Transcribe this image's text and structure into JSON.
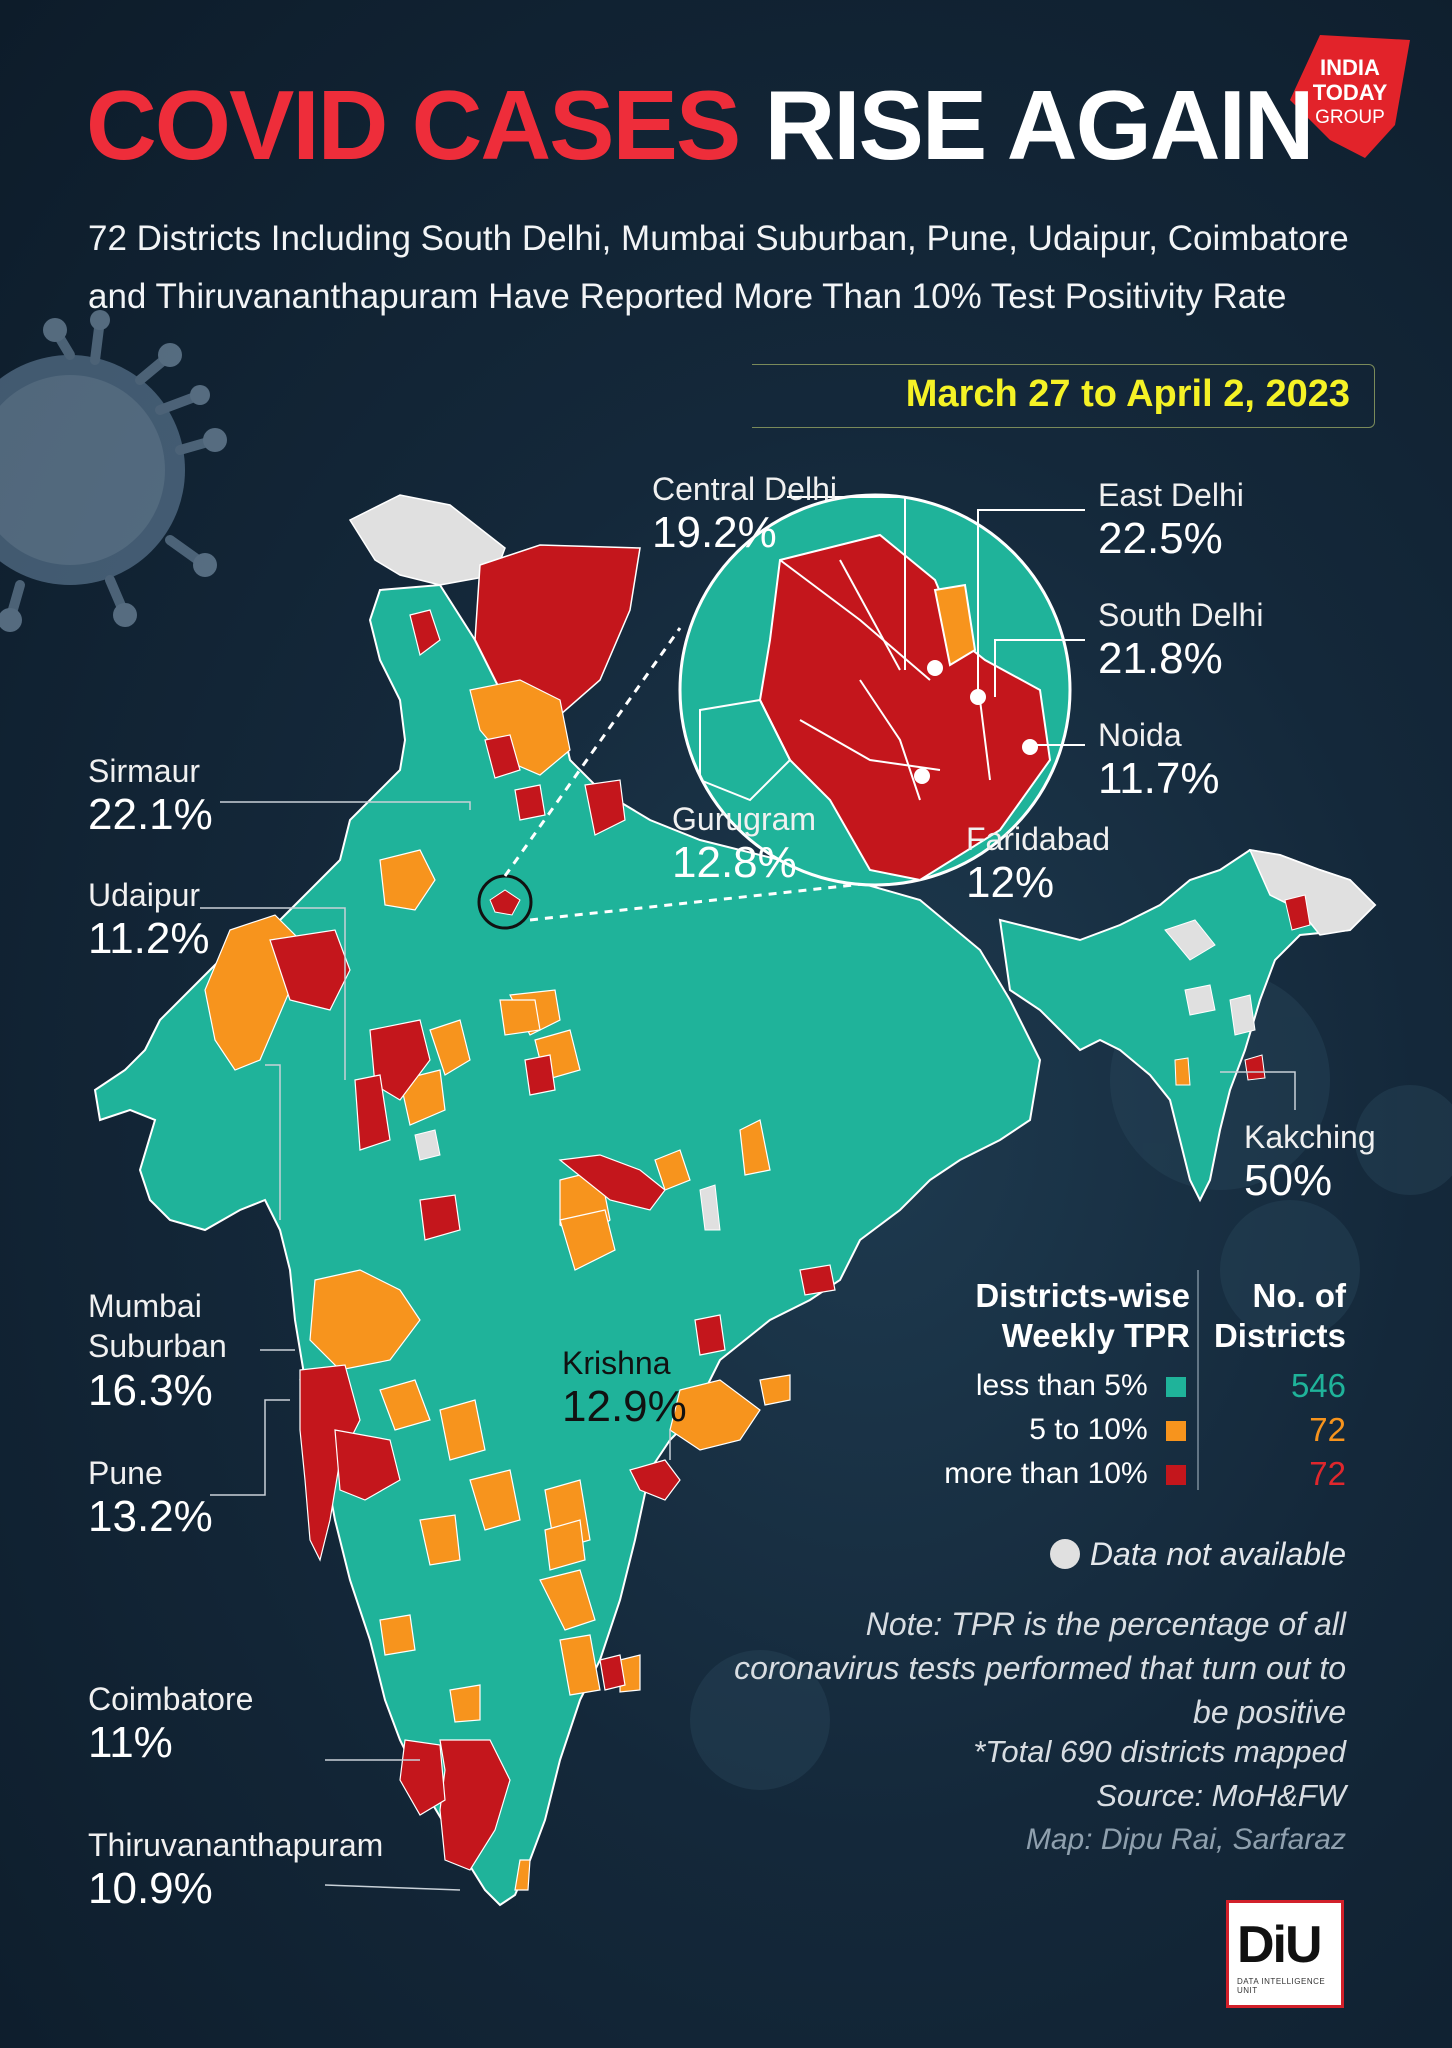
{
  "brand": {
    "logo_text": "INDIA TODAY GROUP",
    "colors": {
      "accent_red": "#ee2d3a",
      "date_yellow": "#f5f226"
    }
  },
  "title": {
    "part1": "COVID CASES",
    "part2": "RISE AGAIN"
  },
  "subtitle": "72 Districts Including South Delhi, Mumbai Suburban, Pune, Udaipur, Coimbatore and Thiruvananthapuram Have Reported More Than 10% Test Positivity Rate",
  "date_range": "March 27 to April 2, 2023",
  "map_colors": {
    "less_than_5": "#1fb39a",
    "5_to_10": "#f7941d",
    "more_than_10": "#c4161c",
    "not_available": "#e0e0e0"
  },
  "labels": {
    "central_delhi": {
      "name": "Central Delhi",
      "value": "19.2%"
    },
    "east_delhi": {
      "name": "East Delhi",
      "value": "22.5%"
    },
    "south_delhi": {
      "name": "South Delhi",
      "value": "21.8%"
    },
    "noida": {
      "name": "Noida",
      "value": "11.7%"
    },
    "gurugram": {
      "name": "Gurugram",
      "value": "12.8%"
    },
    "faridabad": {
      "name": "Faridabad",
      "value": "12%"
    },
    "sirmaur": {
      "name": "Sirmaur",
      "value": "22.1%"
    },
    "udaipur": {
      "name": "Udaipur",
      "value": "11.2%"
    },
    "mumbai_suburban": {
      "name": "Mumbai Suburban",
      "value": "16.3%"
    },
    "pune": {
      "name": "Pune",
      "value": "13.2%"
    },
    "krishna": {
      "name": "Krishna",
      "value": "12.9%"
    },
    "kakching": {
      "name": "Kakching",
      "value": "50%"
    },
    "coimbatore": {
      "name": "Coimbatore",
      "value": "11%"
    },
    "thiruvananthapuram": {
      "name": "Thiruvananthapuram",
      "value": "10.9%"
    }
  },
  "legend": {
    "heading_left": "Districts-wise Weekly TPR",
    "heading_right": "No. of Districts",
    "rows": [
      {
        "label": "less than 5%",
        "count": "546",
        "color": "#1fb39a"
      },
      {
        "label": "5 to 10%",
        "count": "72",
        "color": "#f7941d"
      },
      {
        "label": "more than 10%",
        "count": "72",
        "color": "#c4161c"
      }
    ],
    "not_available": "Data not available"
  },
  "note": "Note: TPR is the percentage of all coronavirus tests performed that turn out to be positive",
  "footer": {
    "total": "*Total 690 districts mapped",
    "source": "Source: MoH&FW",
    "credit": "Map: Dipu Rai, Sarfaraz",
    "diu_logo": "DiU",
    "diu_sub": "DATA INTELLIGENCE UNIT"
  }
}
